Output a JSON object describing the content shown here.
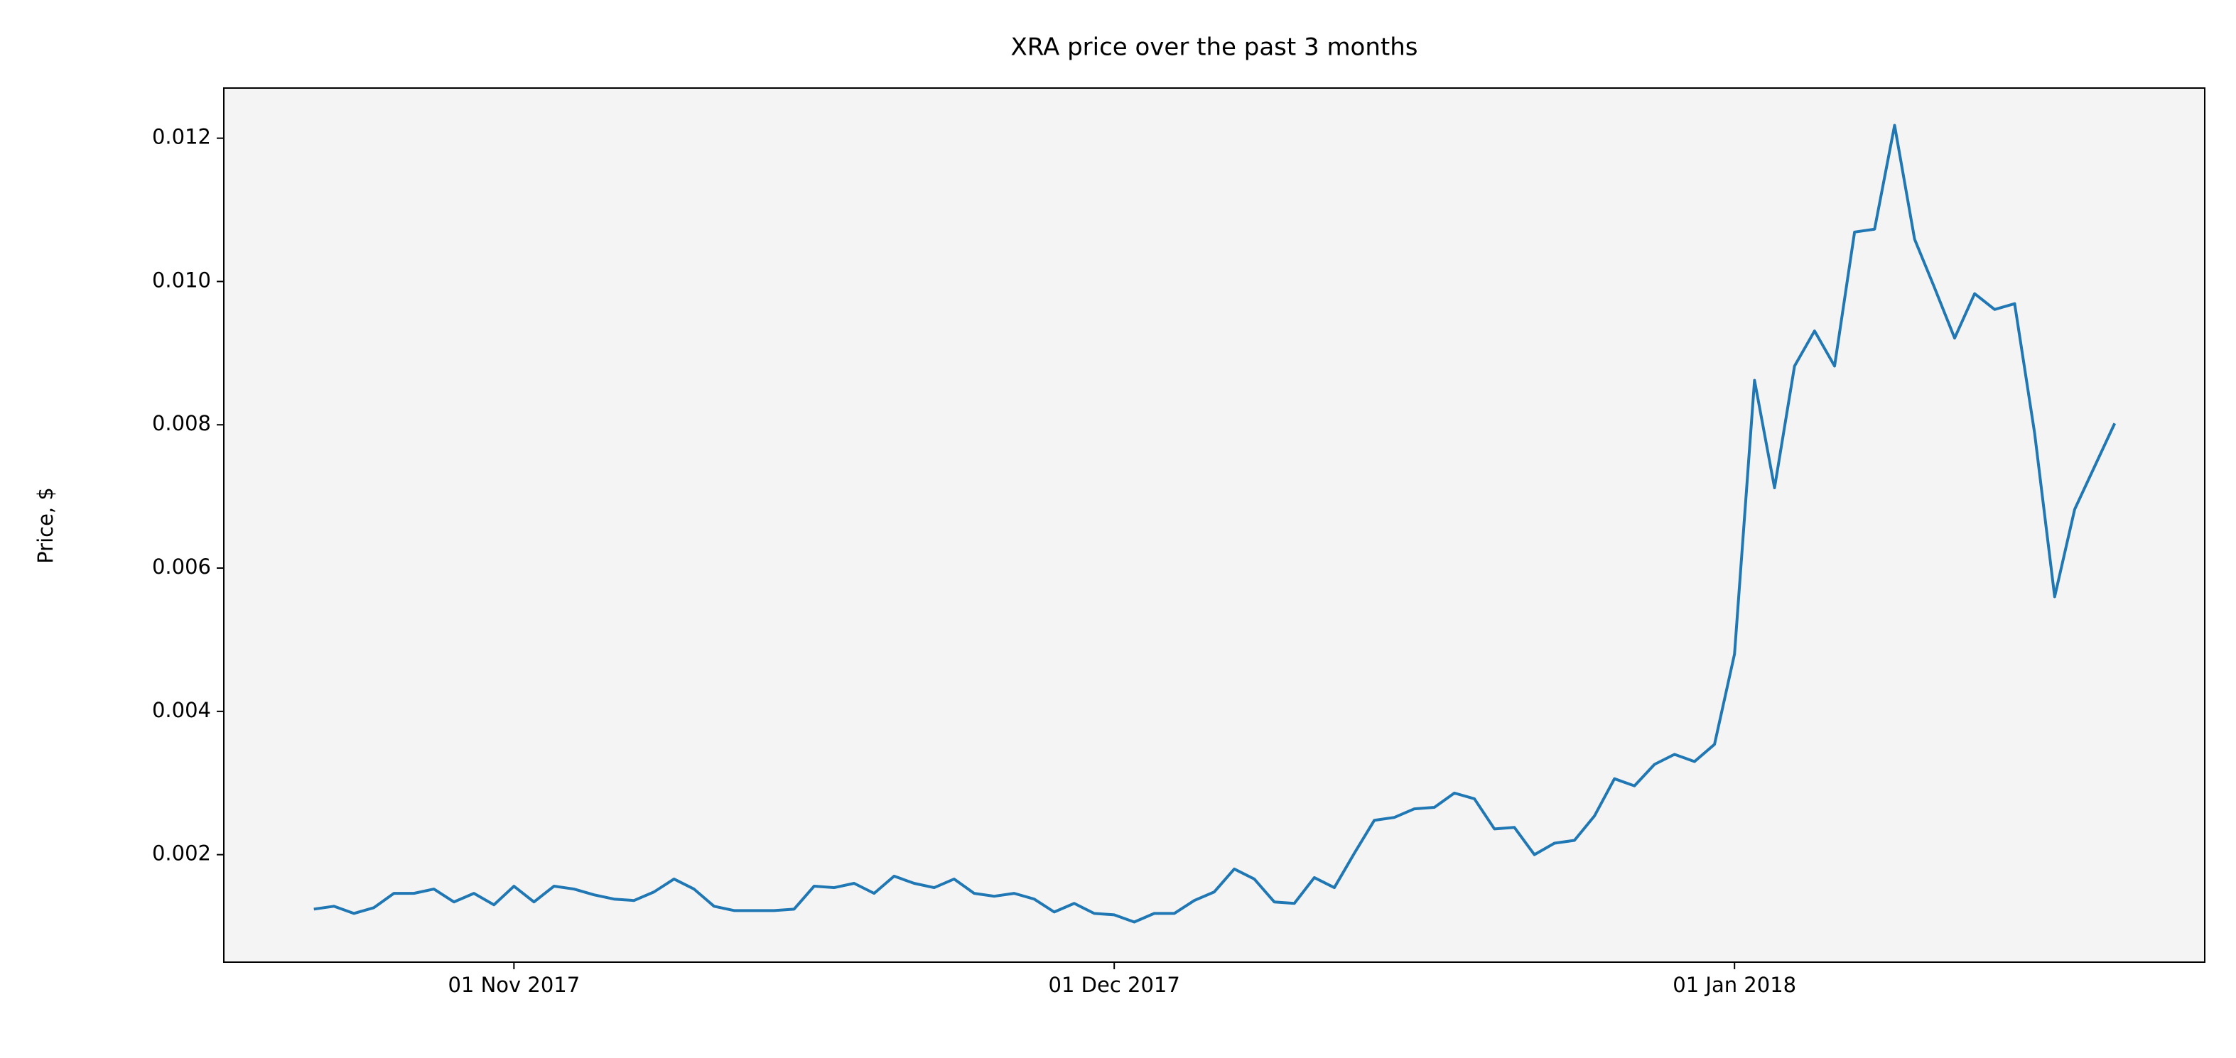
{
  "chart_data": {
    "type": "line",
    "title": "XRA price over the past 3 months",
    "ylabel": "Price, $",
    "x": [
      "2017-10-22",
      "2017-10-23",
      "2017-10-24",
      "2017-10-25",
      "2017-10-26",
      "2017-10-27",
      "2017-10-28",
      "2017-10-29",
      "2017-10-30",
      "2017-10-31",
      "2017-11-01",
      "2017-11-02",
      "2017-11-03",
      "2017-11-04",
      "2017-11-05",
      "2017-11-06",
      "2017-11-07",
      "2017-11-08",
      "2017-11-09",
      "2017-11-10",
      "2017-11-11",
      "2017-11-12",
      "2017-11-13",
      "2017-11-14",
      "2017-11-15",
      "2017-11-16",
      "2017-11-17",
      "2017-11-18",
      "2017-11-19",
      "2017-11-20",
      "2017-11-21",
      "2017-11-22",
      "2017-11-23",
      "2017-11-24",
      "2017-11-25",
      "2017-11-26",
      "2017-11-27",
      "2017-11-28",
      "2017-11-29",
      "2017-11-30",
      "2017-12-01",
      "2017-12-02",
      "2017-12-03",
      "2017-12-04",
      "2017-12-05",
      "2017-12-06",
      "2017-12-07",
      "2017-12-08",
      "2017-12-09",
      "2017-12-10",
      "2017-12-11",
      "2017-12-12",
      "2017-12-13",
      "2017-12-14",
      "2017-12-15",
      "2017-12-16",
      "2017-12-17",
      "2017-12-18",
      "2017-12-19",
      "2017-12-20",
      "2017-12-21",
      "2017-12-22",
      "2017-12-23",
      "2017-12-24",
      "2017-12-25",
      "2017-12-26",
      "2017-12-27",
      "2017-12-28",
      "2017-12-29",
      "2017-12-30",
      "2017-12-31",
      "2018-01-01",
      "2018-01-02",
      "2018-01-03",
      "2018-01-04",
      "2018-01-05",
      "2018-01-06",
      "2018-01-07",
      "2018-01-08",
      "2018-01-09",
      "2018-01-10",
      "2018-01-11",
      "2018-01-12",
      "2018-01-13",
      "2018-01-14",
      "2018-01-15",
      "2018-01-16",
      "2018-01-17",
      "2018-01-18",
      "2018-01-19",
      "2018-01-20"
    ],
    "series": [
      {
        "name": "XRA",
        "color": "#1f77b4",
        "values": [
          0.00124,
          0.00128,
          0.00118,
          0.00126,
          0.00146,
          0.00146,
          0.00152,
          0.00134,
          0.00146,
          0.0013,
          0.00156,
          0.00134,
          0.00156,
          0.00152,
          0.00144,
          0.00138,
          0.00136,
          0.00148,
          0.00166,
          0.00152,
          0.00128,
          0.00122,
          0.00122,
          0.00122,
          0.00124,
          0.00156,
          0.00154,
          0.0016,
          0.00146,
          0.0017,
          0.0016,
          0.00154,
          0.00166,
          0.00146,
          0.00142,
          0.00146,
          0.00138,
          0.0012,
          0.00132,
          0.00118,
          0.00116,
          0.00106,
          0.00118,
          0.00118,
          0.00136,
          0.00148,
          0.0018,
          0.00166,
          0.00134,
          0.00132,
          0.00168,
          0.00154,
          0.00202,
          0.00248,
          0.00252,
          0.00264,
          0.00266,
          0.00286,
          0.00278,
          0.00236,
          0.00238,
          0.002,
          0.00216,
          0.0022,
          0.00254,
          0.00306,
          0.00296,
          0.00326,
          0.0034,
          0.0033,
          0.00354,
          0.0048,
          0.00862,
          0.00712,
          0.00882,
          0.00931,
          0.00882,
          0.01069,
          0.01073,
          0.01218,
          0.01059,
          0.00991,
          0.00921,
          0.00983,
          0.00961,
          0.00969,
          0.00788,
          0.0056,
          0.00682,
          0.00742,
          0.00802
        ]
      }
    ],
    "xlim": [
      "2017-10-17T12:00",
      "2018-01-24T12:00"
    ],
    "xticks": [
      {
        "value": "2017-11-01",
        "label": "01 Nov 2017"
      },
      {
        "value": "2017-12-01",
        "label": "01 Dec 2017"
      },
      {
        "value": "2018-01-01",
        "label": "01 Jan 2018"
      }
    ],
    "ylim": [
      0.0005,
      0.0127
    ],
    "yticks": [
      0.002,
      0.004,
      0.006,
      0.008,
      {
        "value": 0.01,
        "label": "0.010"
      },
      0.012
    ],
    "background": "#f4f4f4"
  }
}
